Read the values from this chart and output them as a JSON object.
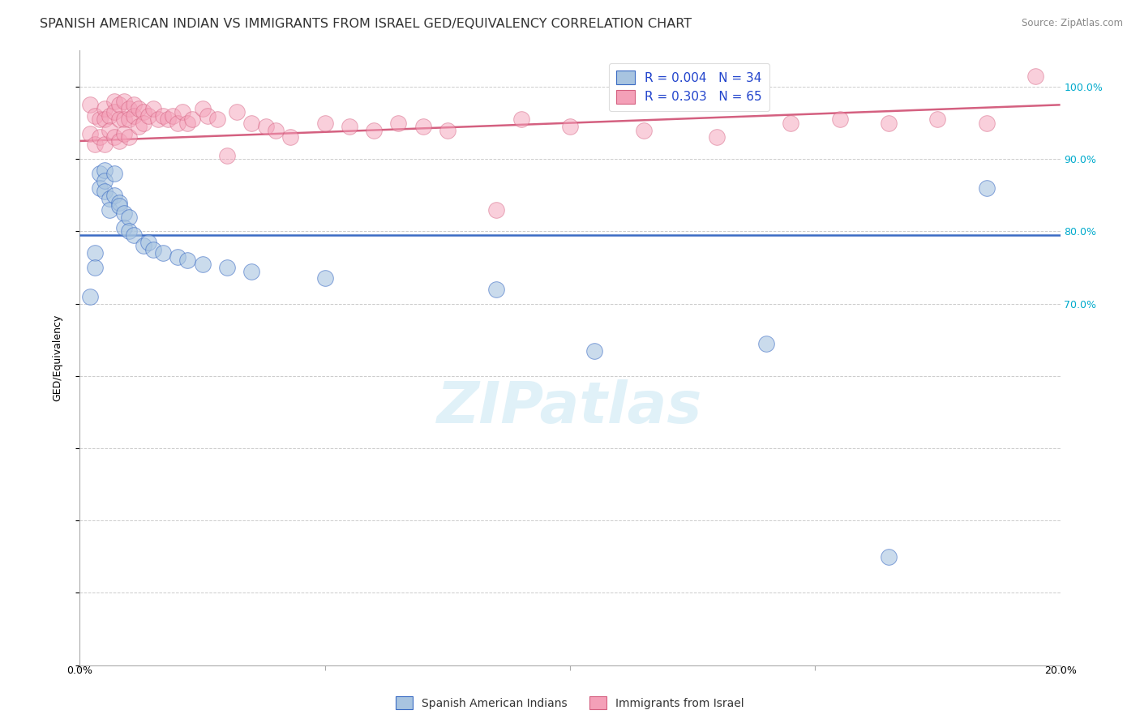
{
  "title": "SPANISH AMERICAN INDIAN VS IMMIGRANTS FROM ISRAEL GED/EQUIVALENCY CORRELATION CHART",
  "source": "Source: ZipAtlas.com",
  "ylabel": "GED/Equivalency",
  "xlim": [
    0.0,
    20.0
  ],
  "ylim": [
    20.0,
    105.0
  ],
  "legend_entries": [
    {
      "label": "R = 0.004   N = 34",
      "color": "#aec6f0"
    },
    {
      "label": "R = 0.303   N = 65",
      "color": "#f4a7b9"
    }
  ],
  "blue_scatter_x": [
    0.2,
    0.3,
    0.3,
    0.4,
    0.4,
    0.5,
    0.5,
    0.5,
    0.6,
    0.6,
    0.7,
    0.7,
    0.8,
    0.8,
    0.9,
    0.9,
    1.0,
    1.0,
    1.1,
    1.3,
    1.4,
    1.5,
    1.7,
    2.0,
    2.2,
    2.5,
    3.0,
    3.5,
    5.0,
    8.5,
    10.5,
    14.0,
    16.5,
    18.5
  ],
  "blue_scatter_y": [
    71.0,
    77.0,
    75.0,
    88.0,
    86.0,
    88.5,
    87.0,
    85.5,
    84.5,
    83.0,
    88.0,
    85.0,
    84.0,
    83.5,
    82.5,
    80.5,
    82.0,
    80.0,
    79.5,
    78.0,
    78.5,
    77.5,
    77.0,
    76.5,
    76.0,
    75.5,
    75.0,
    74.5,
    73.5,
    72.0,
    63.5,
    64.5,
    35.0,
    86.0
  ],
  "pink_scatter_x": [
    0.2,
    0.2,
    0.3,
    0.3,
    0.4,
    0.4,
    0.5,
    0.5,
    0.5,
    0.6,
    0.6,
    0.7,
    0.7,
    0.7,
    0.8,
    0.8,
    0.8,
    0.9,
    0.9,
    0.9,
    1.0,
    1.0,
    1.0,
    1.1,
    1.1,
    1.2,
    1.2,
    1.3,
    1.3,
    1.4,
    1.5,
    1.6,
    1.7,
    1.8,
    1.9,
    2.0,
    2.1,
    2.2,
    2.3,
    2.5,
    2.6,
    2.8,
    3.0,
    3.2,
    3.5,
    3.8,
    4.0,
    4.3,
    5.0,
    5.5,
    6.0,
    6.5,
    7.0,
    7.5,
    8.5,
    9.0,
    10.0,
    11.5,
    13.0,
    14.5,
    15.5,
    16.5,
    17.5,
    18.5,
    19.5
  ],
  "pink_scatter_y": [
    97.5,
    93.5,
    96.0,
    92.0,
    95.5,
    93.0,
    97.0,
    95.5,
    92.0,
    96.0,
    94.0,
    98.0,
    96.5,
    93.0,
    97.5,
    95.5,
    92.5,
    98.0,
    95.5,
    93.5,
    97.0,
    95.5,
    93.0,
    97.5,
    96.0,
    97.0,
    94.5,
    96.5,
    95.0,
    96.0,
    97.0,
    95.5,
    96.0,
    95.5,
    96.0,
    95.0,
    96.5,
    95.0,
    95.5,
    97.0,
    96.0,
    95.5,
    90.5,
    96.5,
    95.0,
    94.5,
    94.0,
    93.0,
    95.0,
    94.5,
    94.0,
    95.0,
    94.5,
    94.0,
    83.0,
    95.5,
    94.5,
    94.0,
    93.0,
    95.0,
    95.5,
    95.0,
    95.5,
    95.0,
    101.5
  ],
  "blue_line_x": [
    0.0,
    20.0
  ],
  "blue_line_y": [
    79.5,
    79.5
  ],
  "pink_line_x": [
    0.0,
    20.0
  ],
  "pink_line_y": [
    92.5,
    97.5
  ],
  "blue_color": "#a8c4e0",
  "pink_color": "#f4a0b8",
  "blue_line_color": "#3a6bc4",
  "pink_line_color": "#d46080",
  "bg_color": "#ffffff",
  "grid_color": "#cccccc",
  "watermark": "ZIPatlas",
  "title_fontsize": 11.5,
  "axis_label_fontsize": 9,
  "tick_fontsize": 9,
  "legend_fontsize": 11
}
